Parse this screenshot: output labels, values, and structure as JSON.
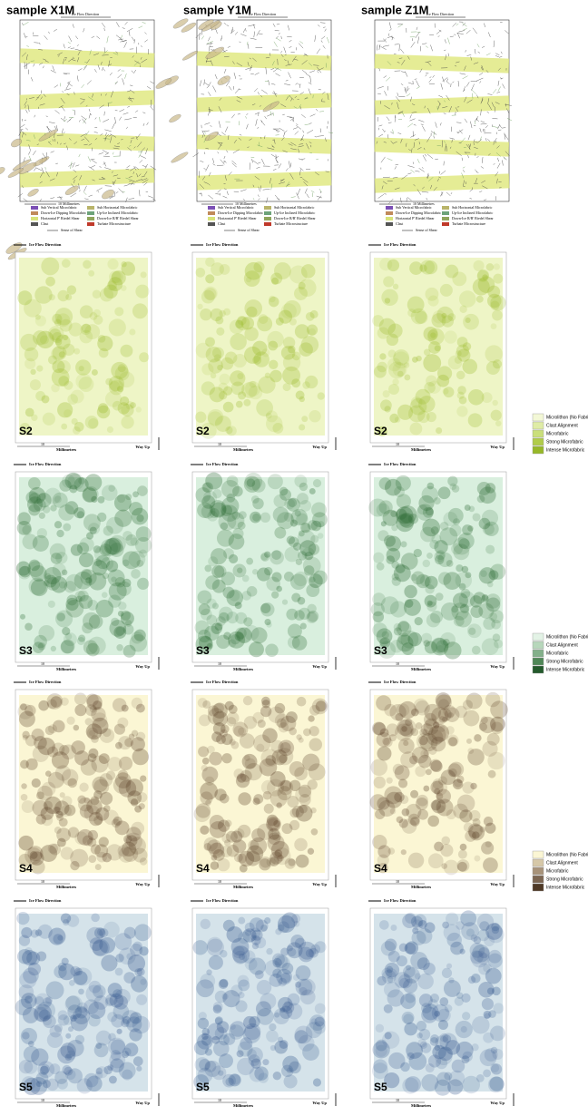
{
  "samples": [
    "sample X1M",
    "sample Y1M",
    "sample Z1M"
  ],
  "thin_section": {
    "flow_label": "Ice Flow Direction",
    "scale_label": "10 Millimetres",
    "shear_label": "Sense of Shear",
    "legend": [
      {
        "label": "Sub Vertical Microfabric",
        "color": "#7b4fb5"
      },
      {
        "label": "Sub Horizontal Microfabric",
        "color": "#b9b46a"
      },
      {
        "label": "Down-Ice Dipping Microfabric",
        "color": "#c08a5a"
      },
      {
        "label": "Up-Ice Inclined Microfabric",
        "color": "#6da37a"
      },
      {
        "label": "Horizontal P' Riedel Shear",
        "color": "#d8e37a"
      },
      {
        "label": "Down-Ice R/R' Riedel Shear",
        "color": "#8fa55c"
      },
      {
        "label": "Clast",
        "color": "#555555"
      },
      {
        "label": "Turbate Microstructure",
        "color": "#c0392b"
      }
    ]
  },
  "density_maps": {
    "flow_label": "Ice Flow Direction",
    "scale_number": "10",
    "scale_label": "Millimetres",
    "way_up": "Way Up"
  },
  "rows": [
    {
      "label": "S2",
      "base": "#eef5c6",
      "blob": "#9dbb2e",
      "legend": [
        {
          "label": "Microlithon (No Fabric)",
          "color": "#f3f8d6"
        },
        {
          "label": "Clast Alignment",
          "color": "#dfeca6"
        },
        {
          "label": "Microfabric",
          "color": "#cadf7a"
        },
        {
          "label": "Strong Microfabric",
          "color": "#b1cc4a"
        },
        {
          "label": "Intense Microfabric",
          "color": "#97b828"
        }
      ]
    },
    {
      "label": "S3",
      "base": "#d9efde",
      "blob": "#2d6b34",
      "legend": [
        {
          "label": "Microlithon (No Fabric)",
          "color": "#e3f3e6"
        },
        {
          "label": "Clast Alignment",
          "color": "#b7d7bb"
        },
        {
          "label": "Microfabric",
          "color": "#83b08a"
        },
        {
          "label": "Strong Microfabric",
          "color": "#4f8757"
        },
        {
          "label": "Intense Microfabric",
          "color": "#245a2c"
        }
      ]
    },
    {
      "label": "S4",
      "base": "#fbf6d4",
      "blob": "#5a3f27",
      "legend": [
        {
          "label": "Microlithon (No Fabric)",
          "color": "#fbf6d4"
        },
        {
          "label": "Clast Alignment",
          "color": "#d6c8a8"
        },
        {
          "label": "Microfabric",
          "color": "#a8937a"
        },
        {
          "label": "Strong Microfabric",
          "color": "#7c6652"
        },
        {
          "label": "Intense Microfabric",
          "color": "#4f3926"
        }
      ]
    },
    {
      "label": "S5",
      "base": "#d5e3ea",
      "blob": "#35588e"
    }
  ]
}
